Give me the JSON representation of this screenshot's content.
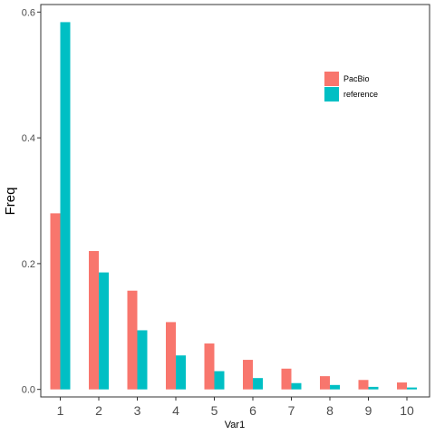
{
  "chart_data": {
    "type": "bar",
    "categories": [
      "1",
      "2",
      "3",
      "4",
      "5",
      "6",
      "7",
      "8",
      "9",
      "10"
    ],
    "series": [
      {
        "name": "PacBio",
        "color": "#F8766D",
        "values": [
          0.28,
          0.22,
          0.157,
          0.107,
          0.073,
          0.047,
          0.033,
          0.021,
          0.015,
          0.011
        ]
      },
      {
        "name": "reference",
        "color": "#00BFC4",
        "values": [
          0.584,
          0.186,
          0.094,
          0.054,
          0.029,
          0.018,
          0.01,
          0.007,
          0.004,
          0.003
        ]
      }
    ],
    "xlabel": "Var1",
    "ylabel": "Freq",
    "ylim": [
      -0.012,
      0.612
    ],
    "yticks": [
      0.0,
      0.2,
      0.4,
      0.6
    ],
    "ytick_labels": [
      "0.0",
      "0.2",
      "0.4",
      "0.6"
    ],
    "grid": false,
    "legend_position": "top-right"
  }
}
